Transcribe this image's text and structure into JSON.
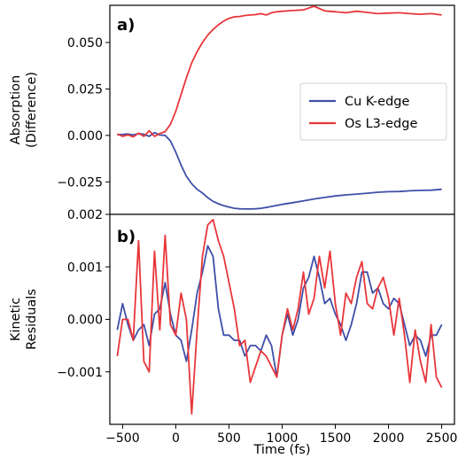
{
  "chart_data": [
    {
      "type": "line",
      "panel_label": "a)",
      "xlabel": "",
      "ylabel": [
        "Absorption",
        "(Difference)"
      ],
      "xlim": [
        -620,
        2620
      ],
      "ylim": [
        -0.0425,
        0.07
      ],
      "yticks": [
        -0.025,
        0.0,
        0.025,
        0.05
      ],
      "ytick_labels": [
        "−0.025",
        "0.000",
        "0.025",
        "0.050"
      ],
      "legend_position": "center-right",
      "series": [
        {
          "name": "Cu K-edge",
          "color": "#3f4fa8",
          "x": [
            -550,
            -500,
            -450,
            -400,
            -350,
            -300,
            -250,
            -200,
            -150,
            -100,
            -50,
            0,
            50,
            100,
            150,
            200,
            250,
            300,
            350,
            400,
            450,
            500,
            550,
            600,
            650,
            700,
            750,
            800,
            850,
            900,
            950,
            1000,
            1100,
            1200,
            1300,
            1400,
            1500,
            1600,
            1700,
            1800,
            1900,
            2000,
            2100,
            2200,
            2300,
            2400,
            2500
          ],
          "y": [
            0.0003,
            0.0005,
            0.0008,
            0.0002,
            0.001,
            0.0006,
            -0.0005,
            0.0015,
            0.0002,
            0.0,
            -0.003,
            -0.009,
            -0.016,
            -0.022,
            -0.026,
            -0.029,
            -0.031,
            -0.0335,
            -0.0355,
            -0.0368,
            -0.0378,
            -0.0386,
            -0.0392,
            -0.0395,
            -0.0396,
            -0.0396,
            -0.0395,
            -0.0392,
            -0.0388,
            -0.0382,
            -0.0377,
            -0.0371,
            -0.0362,
            -0.0352,
            -0.0342,
            -0.0334,
            -0.0326,
            -0.032,
            -0.0316,
            -0.0311,
            -0.0306,
            -0.0303,
            -0.0302,
            -0.0298,
            -0.0296,
            -0.0295,
            -0.029
          ]
        },
        {
          "name": "Os L3-edge",
          "color": "#e8363a",
          "x": [
            -550,
            -500,
            -450,
            -400,
            -350,
            -300,
            -250,
            -200,
            -150,
            -100,
            -50,
            0,
            50,
            100,
            150,
            200,
            250,
            300,
            350,
            400,
            450,
            500,
            550,
            600,
            650,
            700,
            750,
            800,
            850,
            900,
            950,
            1000,
            1100,
            1200,
            1300,
            1400,
            1500,
            1600,
            1700,
            1800,
            1900,
            2000,
            2100,
            2200,
            2300,
            2400,
            2500
          ],
          "y": [
            0.0008,
            -0.0005,
            0.0003,
            -0.0008,
            0.0012,
            -0.0005,
            0.0025,
            -0.0005,
            0.001,
            0.002,
            0.006,
            0.013,
            0.022,
            0.031,
            0.039,
            0.045,
            0.05,
            0.054,
            0.057,
            0.0595,
            0.0615,
            0.063,
            0.0638,
            0.064,
            0.0645,
            0.0648,
            0.065,
            0.0655,
            0.0648,
            0.066,
            0.0665,
            0.0668,
            0.0672,
            0.0675,
            0.0695,
            0.067,
            0.0665,
            0.066,
            0.0668,
            0.0662,
            0.0655,
            0.0658,
            0.066,
            0.0655,
            0.0652,
            0.0655,
            0.0648
          ]
        }
      ]
    },
    {
      "type": "line",
      "panel_label": "b)",
      "xlabel": "Time (fs)",
      "ylabel": [
        "Kinetic",
        "Residuals"
      ],
      "xlim": [
        -620,
        2620
      ],
      "ylim": [
        -0.002,
        0.002
      ],
      "xticks": [
        -500,
        0,
        500,
        1000,
        1500,
        2000,
        2500
      ],
      "xtick_labels": [
        "−500",
        "0",
        "500",
        "1000",
        "1500",
        "2000",
        "2500"
      ],
      "yticks": [
        -0.001,
        0.0,
        0.001,
        0.002
      ],
      "ytick_labels": [
        "−0.001",
        "0.000",
        "0.001",
        "0.002"
      ],
      "series": [
        {
          "name": "Cu K-edge",
          "color": "#3f4fa8",
          "x": [
            -550,
            -500,
            -450,
            -400,
            -350,
            -300,
            -250,
            -200,
            -150,
            -100,
            -50,
            0,
            50,
            100,
            150,
            200,
            250,
            300,
            350,
            400,
            450,
            500,
            550,
            600,
            650,
            700,
            750,
            800,
            850,
            900,
            950,
            1000,
            1050,
            1100,
            1150,
            1200,
            1250,
            1300,
            1350,
            1400,
            1450,
            1500,
            1550,
            1600,
            1650,
            1700,
            1750,
            1800,
            1850,
            1900,
            1950,
            2000,
            2050,
            2100,
            2150,
            2200,
            2250,
            2300,
            2350,
            2400,
            2450,
            2500
          ],
          "y": [
            -0.0002,
            0.0003,
            -0.0001,
            -0.0004,
            -0.0002,
            -0.0001,
            -0.0005,
            0.0001,
            0.0002,
            0.0007,
            0.0001,
            -0.0003,
            -0.0004,
            -0.0008,
            -0.0002,
            0.0005,
            0.0009,
            0.0014,
            0.0012,
            0.0002,
            -0.0003,
            -0.0003,
            -0.0004,
            -0.0004,
            -0.0007,
            -0.0005,
            -0.0005,
            -0.0006,
            -0.0003,
            -0.0005,
            -0.0011,
            -0.0003,
            0.0001,
            -0.0003,
            0.0,
            0.0006,
            0.0008,
            0.0012,
            0.0008,
            0.0003,
            0.0004,
            0.0001,
            -0.0001,
            -0.0004,
            -0.0001,
            0.0003,
            0.0009,
            0.0009,
            0.0005,
            0.0006,
            0.0003,
            0.0002,
            0.0004,
            0.0003,
            -0.0001,
            -0.0005,
            -0.0003,
            -0.0004,
            -0.0007,
            -0.0003,
            -0.0003,
            -0.0001
          ]
        },
        {
          "name": "Os L3-edge",
          "color": "#e8363a",
          "x": [
            -550,
            -500,
            -450,
            -400,
            -350,
            -300,
            -250,
            -200,
            -150,
            -100,
            -50,
            0,
            50,
            100,
            150,
            200,
            250,
            300,
            350,
            400,
            450,
            500,
            550,
            600,
            650,
            700,
            750,
            800,
            850,
            900,
            950,
            1000,
            1050,
            1100,
            1150,
            1200,
            1250,
            1300,
            1350,
            1400,
            1450,
            1500,
            1550,
            1600,
            1650,
            1700,
            1750,
            1800,
            1850,
            1900,
            1950,
            2000,
            2050,
            2100,
            2150,
            2200,
            2250,
            2300,
            2350,
            2400,
            2450,
            2500
          ],
          "y": [
            -0.0007,
            0.0,
            0.0,
            -0.0004,
            0.0015,
            -0.0008,
            -0.001,
            0.0013,
            -0.0002,
            0.0016,
            -0.0001,
            -0.0003,
            0.0005,
            0.0,
            -0.0018,
            -0.0002,
            0.0012,
            0.0018,
            0.0019,
            0.0015,
            0.0012,
            0.0007,
            0.0002,
            -0.0005,
            -0.0004,
            -0.0012,
            -0.0009,
            -0.0006,
            -0.0007,
            -0.0009,
            -0.0011,
            -0.0003,
            0.0002,
            -0.0002,
            0.0002,
            0.0009,
            0.0001,
            0.0004,
            0.0012,
            0.0006,
            0.0013,
            0.0003,
            -0.0003,
            0.0005,
            0.0003,
            0.0008,
            0.0011,
            0.0003,
            0.0002,
            0.0006,
            0.0008,
            0.0004,
            -0.0003,
            0.0004,
            -0.0003,
            -0.0012,
            -0.0002,
            -0.0008,
            -0.0012,
            -0.0001,
            -0.0011,
            -0.0013
          ]
        }
      ]
    }
  ]
}
